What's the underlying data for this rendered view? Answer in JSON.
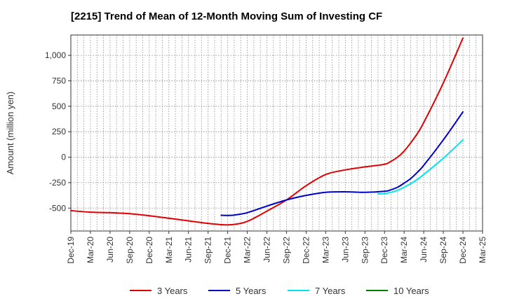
{
  "chart_data": {
    "type": "line",
    "title": "[2215]  Trend of Mean of 12-Month Moving Sum of Investing CF",
    "xlabel": "",
    "ylabel": "Amount (million yen)",
    "ylim": [
      -725,
      1200
    ],
    "yticks": [
      -500,
      -250,
      0,
      250,
      500,
      750,
      1000
    ],
    "ytick_labels": [
      "-500",
      "-250",
      "0",
      "250",
      "500",
      "750",
      "1,000"
    ],
    "x_tick_labels": [
      "Dec-19",
      "Mar-20",
      "Jun-20",
      "Sep-20",
      "Dec-20",
      "Mar-21",
      "Jun-21",
      "Sep-21",
      "Dec-21",
      "Mar-22",
      "Jun-22",
      "Sep-22",
      "Dec-22",
      "Mar-23",
      "Jun-23",
      "Sep-23",
      "Dec-23",
      "Mar-24",
      "Jun-24",
      "Sep-24",
      "Dec-24",
      "Mar-25"
    ],
    "grid": true,
    "legend_position": "bottom",
    "series": [
      {
        "name": "3 Years",
        "color": "#e00000",
        "points": [
          [
            "Dec-19",
            -525
          ],
          [
            "Mar-20",
            -540
          ],
          [
            "Jun-20",
            -545
          ],
          [
            "Sep-20",
            -555
          ],
          [
            "Dec-20",
            -575
          ],
          [
            "Mar-21",
            -600
          ],
          [
            "Jun-21",
            -625
          ],
          [
            "Sep-21",
            -650
          ],
          [
            "Dec-21",
            -665
          ],
          [
            "Feb-22",
            -650
          ],
          [
            "Mar-22",
            -630
          ],
          [
            "Apr-22",
            -600
          ],
          [
            "Jun-22",
            -530
          ],
          [
            "Sep-22",
            -420
          ],
          [
            "Dec-22",
            -280
          ],
          [
            "Mar-23",
            -170
          ],
          [
            "Jun-23",
            -125
          ],
          [
            "Sep-23",
            -95
          ],
          [
            "Dec-23",
            -70
          ],
          [
            "Jan-24",
            -40
          ],
          [
            "Feb-24",
            0
          ],
          [
            "Mar-24",
            60
          ],
          [
            "Apr-24",
            140
          ],
          [
            "May-24",
            230
          ],
          [
            "Jun-24",
            340
          ],
          [
            "Sep-24",
            730
          ],
          [
            "Dec-24",
            1170
          ]
        ]
      },
      {
        "name": "5 Years",
        "color": "#0000cc",
        "points": [
          [
            "Nov-21",
            -570
          ],
          [
            "Dec-21",
            -572
          ],
          [
            "Jan-22",
            -568
          ],
          [
            "Mar-22",
            -545
          ],
          [
            "Jun-22",
            -480
          ],
          [
            "Sep-22",
            -420
          ],
          [
            "Dec-22",
            -375
          ],
          [
            "Mar-23",
            -345
          ],
          [
            "Jun-23",
            -340
          ],
          [
            "Sep-23",
            -345
          ],
          [
            "Dec-23",
            -335
          ],
          [
            "Jan-24",
            -320
          ],
          [
            "Feb-24",
            -295
          ],
          [
            "Mar-24",
            -255
          ],
          [
            "Apr-24",
            -210
          ],
          [
            "May-24",
            -150
          ],
          [
            "Jun-24",
            -80
          ],
          [
            "Sep-24",
            170
          ],
          [
            "Dec-24",
            445
          ]
        ]
      },
      {
        "name": "7 Years",
        "color": "#00e5ee",
        "points": [
          [
            "Nov-23",
            -360
          ],
          [
            "Dec-23",
            -358
          ],
          [
            "Jan-24",
            -345
          ],
          [
            "Feb-24",
            -325
          ],
          [
            "Mar-24",
            -295
          ],
          [
            "Apr-24",
            -260
          ],
          [
            "May-24",
            -220
          ],
          [
            "Jun-24",
            -170
          ],
          [
            "Sep-24",
            -10
          ],
          [
            "Dec-24",
            170
          ]
        ]
      },
      {
        "name": "10 Years",
        "color": "#008000",
        "points": []
      }
    ]
  }
}
